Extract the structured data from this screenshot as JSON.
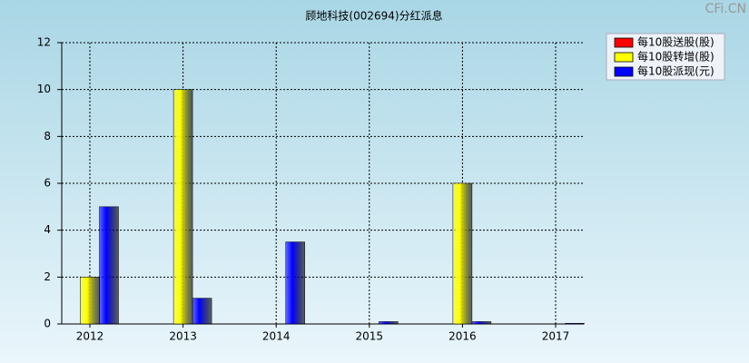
{
  "chart_data": {
    "type": "bar",
    "title": "顾地科技(002694)分红派息",
    "watermark": "CFi.CN",
    "categories": [
      "2012",
      "2013",
      "2014",
      "2015",
      "2016",
      "2017"
    ],
    "series": [
      {
        "name": "每10股送股(股)",
        "color": "#ff0000",
        "values": [
          0,
          0,
          0,
          0,
          0,
          0
        ]
      },
      {
        "name": "每10股转增(股)",
        "color": "#ffff00",
        "values": [
          2,
          10,
          0,
          0,
          6,
          0
        ]
      },
      {
        "name": "每10股派现(元)",
        "color": "#0000ff",
        "values": [
          5,
          1.1,
          3.5,
          0.1,
          0.1,
          0.03
        ]
      }
    ],
    "ylim": [
      0,
      12
    ],
    "yticks": [
      0,
      2,
      4,
      6,
      8,
      10,
      12
    ],
    "grid": true,
    "legend": "top-right"
  }
}
